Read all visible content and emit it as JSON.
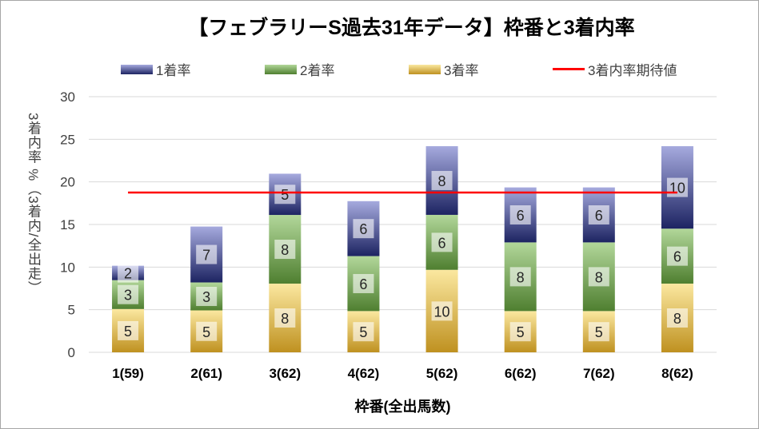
{
  "chart_data": {
    "type": "bar",
    "stacked": true,
    "title": "【フェブラリーS過去31年データ】枠番と3着内率",
    "xlabel": "枠番(全出馬数)",
    "ylabel": "3着内率 %（3着内/全出走）",
    "ylim": [
      0,
      30
    ],
    "yticks": [
      0,
      5,
      10,
      15,
      20,
      25,
      30
    ],
    "grid": true,
    "legend_position": "top",
    "categories": [
      "1(59)",
      "2(61)",
      "3(62)",
      "4(62)",
      "5(62)",
      "6(62)",
      "7(62)",
      "8(62)"
    ],
    "series": [
      {
        "name": "3着率",
        "values": [
          5.08,
          4.92,
          8.06,
          4.84,
          9.68,
          4.84,
          4.84,
          8.06
        ],
        "labels": [
          "5",
          "5",
          "8",
          "5",
          "10",
          "5",
          "5",
          "8"
        ],
        "color_top": "#fbe8a0",
        "color_bottom": "#bf9120"
      },
      {
        "name": "2着率",
        "values": [
          3.39,
          3.28,
          8.06,
          6.45,
          6.45,
          8.06,
          8.06,
          6.45
        ],
        "labels": [
          "3",
          "3",
          "8",
          "6",
          "6",
          "8",
          "8",
          "6"
        ],
        "color_top": "#b2d79a",
        "color_bottom": "#4f7f30"
      },
      {
        "name": "1着率",
        "values": [
          1.69,
          6.56,
          4.84,
          6.45,
          8.06,
          6.45,
          6.45,
          9.68
        ],
        "labels": [
          "2",
          "7",
          "5",
          "6",
          "8",
          "6",
          "6",
          "10"
        ],
        "color_top": "#a6aade",
        "color_bottom": "#1d2462"
      }
    ],
    "reference_line": {
      "name": "3着内率期待値",
      "value": 18.75,
      "color": "#ff0000"
    },
    "legend_order": [
      "1着率",
      "2着率",
      "3着率",
      "3着内率期待値"
    ]
  }
}
